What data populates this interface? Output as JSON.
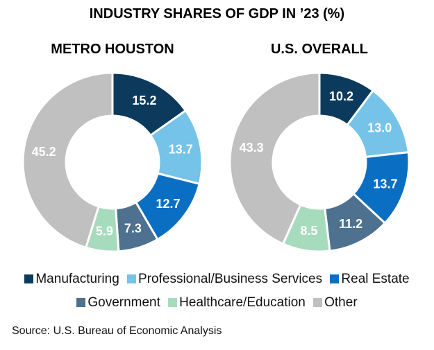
{
  "chart_data": [
    {
      "type": "pie",
      "donut": true,
      "title": "INDUSTRY SHARES OF GDP IN ’23 (%)",
      "subtitle": "METRO HOUSTON",
      "categories": [
        "Manufacturing",
        "Professional/Business Services",
        "Real Estate",
        "Government",
        "Healthcare/Education",
        "Other"
      ],
      "values": [
        15.2,
        13.7,
        12.7,
        7.3,
        5.9,
        45.2
      ]
    },
    {
      "type": "pie",
      "donut": true,
      "title": "INDUSTRY SHARES OF GDP IN ’23 (%)",
      "subtitle": "U.S. OVERALL",
      "categories": [
        "Manufacturing",
        "Professional/Business Services",
        "Real Estate",
        "Government",
        "Healthcare/Education",
        "Other"
      ],
      "values": [
        10.2,
        13.0,
        13.7,
        11.2,
        8.5,
        43.3
      ]
    }
  ],
  "title": "INDUSTRY SHARES OF GDP IN ’23 (%)",
  "subtitles": [
    "METRO HOUSTON",
    "U.S. OVERALL"
  ],
  "legend": [
    {
      "label": "Manufacturing",
      "color": "#0b3a5c"
    },
    {
      "label": "Professional/Business Services",
      "color": "#75c3e8"
    },
    {
      "label": "Real Estate",
      "color": "#0a6fc2"
    },
    {
      "label": "Government",
      "color": "#4d718f"
    },
    {
      "label": "Healthcare/Education",
      "color": "#a7dbbd"
    },
    {
      "label": "Other",
      "color": "#c0c0c0"
    }
  ],
  "source": "Source: U.S. Bureau of Economic Analysis"
}
